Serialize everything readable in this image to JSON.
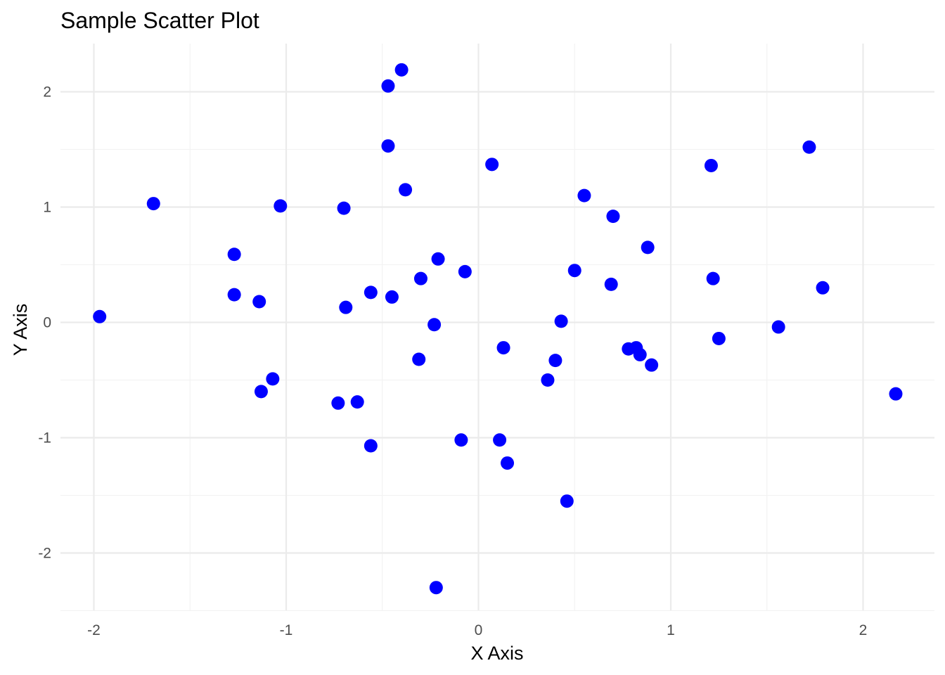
{
  "chart_data": {
    "type": "scatter",
    "title": "Sample Scatter Plot",
    "xlabel": "X Axis",
    "ylabel": "Y Axis",
    "xlim": [
      -2.17,
      2.37
    ],
    "ylim": [
      -2.52,
      2.43
    ],
    "x_ticks": [
      -2,
      -1,
      0,
      1,
      2
    ],
    "x_tick_labels": [
      "-2",
      "-1",
      "0",
      "1",
      "2"
    ],
    "y_ticks": [
      -2,
      -1,
      0,
      1,
      2
    ],
    "y_tick_labels": [
      "-2",
      "-1",
      "0",
      "1",
      "2"
    ],
    "grid": true,
    "legend": "none",
    "point_color": "#0000ff",
    "points": [
      {
        "x": -1.97,
        "y": 0.05
      },
      {
        "x": -1.69,
        "y": 1.03
      },
      {
        "x": -1.27,
        "y": 0.59
      },
      {
        "x": -1.27,
        "y": 0.24
      },
      {
        "x": -1.14,
        "y": 0.18
      },
      {
        "x": -1.13,
        "y": -0.6
      },
      {
        "x": -1.07,
        "y": -0.49
      },
      {
        "x": -1.03,
        "y": 1.01
      },
      {
        "x": -0.73,
        "y": -0.7
      },
      {
        "x": -0.7,
        "y": 0.99
      },
      {
        "x": -0.69,
        "y": 0.13
      },
      {
        "x": -0.63,
        "y": -0.69
      },
      {
        "x": -0.56,
        "y": 0.26
      },
      {
        "x": -0.56,
        "y": -1.07
      },
      {
        "x": -0.47,
        "y": 2.05
      },
      {
        "x": -0.47,
        "y": 1.53
      },
      {
        "x": -0.45,
        "y": 0.22
      },
      {
        "x": -0.4,
        "y": 2.19
      },
      {
        "x": -0.38,
        "y": 1.15
      },
      {
        "x": -0.3,
        "y": 0.38
      },
      {
        "x": -0.31,
        "y": -0.32
      },
      {
        "x": -0.23,
        "y": -0.02
      },
      {
        "x": -0.22,
        "y": -2.3
      },
      {
        "x": -0.21,
        "y": 0.55
      },
      {
        "x": -0.09,
        "y": -1.02
      },
      {
        "x": -0.07,
        "y": 0.44
      },
      {
        "x": 0.07,
        "y": 1.37
      },
      {
        "x": 0.11,
        "y": -1.02
      },
      {
        "x": 0.13,
        "y": -0.22
      },
      {
        "x": 0.15,
        "y": -1.22
      },
      {
        "x": 0.36,
        "y": -0.5
      },
      {
        "x": 0.4,
        "y": -0.33
      },
      {
        "x": 0.43,
        "y": 0.01
      },
      {
        "x": 0.46,
        "y": -1.55
      },
      {
        "x": 0.5,
        "y": 0.45
      },
      {
        "x": 0.55,
        "y": 1.1
      },
      {
        "x": 0.69,
        "y": 0.33
      },
      {
        "x": 0.7,
        "y": 0.92
      },
      {
        "x": 0.78,
        "y": -0.23
      },
      {
        "x": 0.82,
        "y": -0.22
      },
      {
        "x": 0.84,
        "y": -0.28
      },
      {
        "x": 0.88,
        "y": 0.65
      },
      {
        "x": 0.9,
        "y": -0.37
      },
      {
        "x": 1.21,
        "y": 1.36
      },
      {
        "x": 1.22,
        "y": 0.38
      },
      {
        "x": 1.25,
        "y": -0.14
      },
      {
        "x": 1.56,
        "y": -0.04
      },
      {
        "x": 1.72,
        "y": 1.52
      },
      {
        "x": 1.79,
        "y": 0.3
      },
      {
        "x": 2.17,
        "y": -0.62
      }
    ]
  }
}
